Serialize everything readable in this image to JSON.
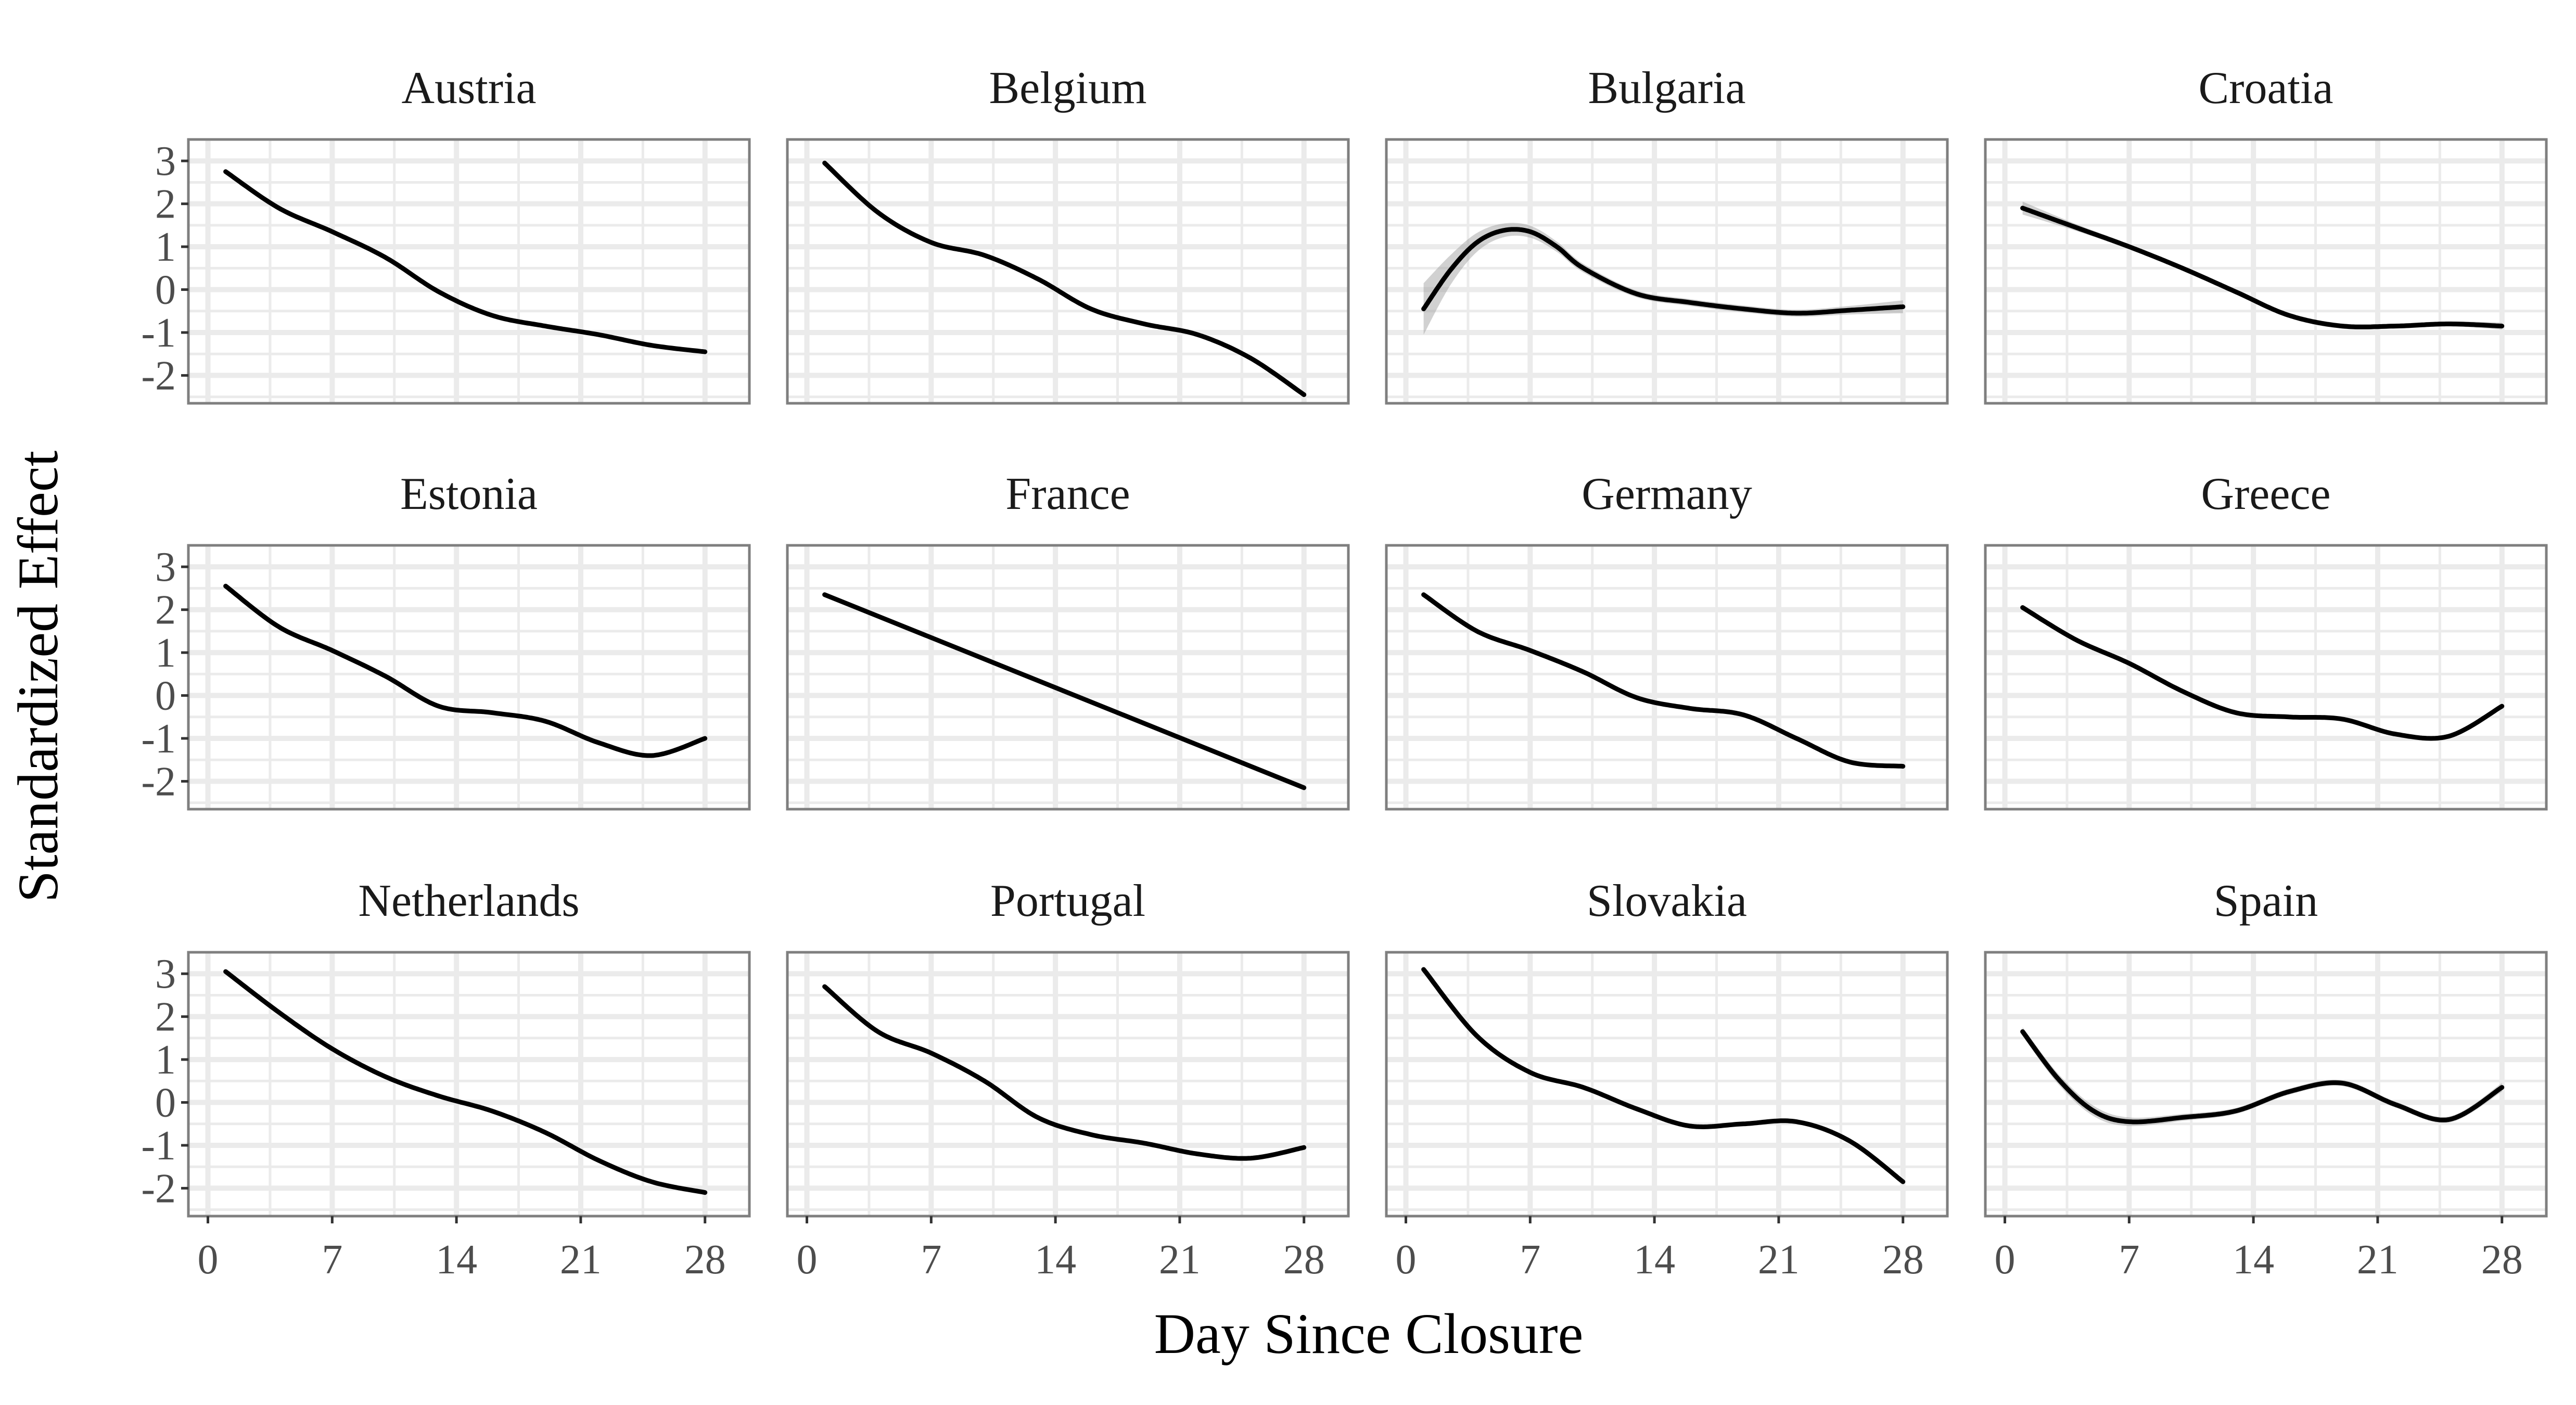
{
  "chart_data": {
    "type": "line",
    "xlabel": "Day Since Closure",
    "ylabel": "Standardized Effect",
    "xlim": [
      -1.1,
      30.5
    ],
    "ylim": [
      -2.65,
      3.5
    ],
    "xticks": [
      0,
      7,
      14,
      21,
      28
    ],
    "xtick_labels": [
      "0",
      "7",
      "14",
      "21",
      "28"
    ],
    "yticks": [
      3,
      2,
      1,
      0,
      -1,
      -2
    ],
    "ytick_labels": [
      "3",
      "2",
      "1",
      "0",
      "-1",
      "-2"
    ],
    "grid": true,
    "layout": {
      "rows": 3,
      "cols": 4
    },
    "panels": [
      {
        "name": "Austria",
        "x": [
          1,
          4,
          7,
          10,
          13,
          16,
          19,
          22,
          25,
          28
        ],
        "y": [
          2.75,
          1.9,
          1.35,
          0.75,
          -0.05,
          -0.6,
          -0.85,
          -1.05,
          -1.3,
          -1.45
        ],
        "band": [
          0.05,
          0.05,
          0.05,
          0.05,
          0.05,
          0.05,
          0.05,
          0.05,
          0.05,
          0.05
        ]
      },
      {
        "name": "Belgium",
        "x": [
          1,
          4,
          7,
          10,
          13,
          16,
          19,
          22,
          25,
          28
        ],
        "y": [
          2.95,
          1.8,
          1.1,
          0.8,
          0.25,
          -0.45,
          -0.8,
          -1.05,
          -1.6,
          -2.45
        ],
        "band": [
          0.05,
          0.05,
          0.05,
          0.05,
          0.05,
          0.05,
          0.05,
          0.05,
          0.05,
          0.05
        ]
      },
      {
        "name": "Bulgaria",
        "x": [
          1,
          2.5,
          4,
          5.5,
          7,
          8.5,
          10,
          13,
          16,
          19,
          22,
          25,
          28
        ],
        "y": [
          -0.45,
          0.45,
          1.1,
          1.38,
          1.35,
          1.0,
          0.5,
          -0.1,
          -0.3,
          -0.45,
          -0.55,
          -0.48,
          -0.4
        ],
        "band": [
          0.6,
          0.35,
          0.22,
          0.16,
          0.14,
          0.12,
          0.1,
          0.08,
          0.08,
          0.08,
          0.08,
          0.1,
          0.15
        ]
      },
      {
        "name": "Croatia",
        "x": [
          1,
          4,
          7,
          10,
          13,
          16,
          19,
          22,
          25,
          28
        ],
        "y": [
          1.9,
          1.45,
          1.0,
          0.5,
          -0.05,
          -0.6,
          -0.85,
          -0.85,
          -0.8,
          -0.85
        ],
        "band": [
          0.15,
          0.08,
          0.06,
          0.06,
          0.06,
          0.06,
          0.06,
          0.06,
          0.06,
          0.08
        ]
      },
      {
        "name": "Estonia",
        "x": [
          1,
          4,
          7,
          10,
          13,
          16,
          19,
          22,
          25,
          28
        ],
        "y": [
          2.55,
          1.6,
          1.05,
          0.45,
          -0.25,
          -0.4,
          -0.6,
          -1.1,
          -1.4,
          -1.0
        ],
        "band": [
          0.05,
          0.05,
          0.05,
          0.05,
          0.05,
          0.05,
          0.05,
          0.05,
          0.05,
          0.05
        ]
      },
      {
        "name": "France",
        "x": [
          1,
          28
        ],
        "y": [
          2.35,
          -2.15
        ],
        "band": [
          0.04,
          0.04
        ]
      },
      {
        "name": "Germany",
        "x": [
          1,
          4,
          7,
          10,
          13,
          16,
          19,
          22,
          25,
          28
        ],
        "y": [
          2.35,
          1.5,
          1.05,
          0.55,
          -0.05,
          -0.3,
          -0.45,
          -1.0,
          -1.55,
          -1.65
        ],
        "band": [
          0.05,
          0.05,
          0.05,
          0.05,
          0.05,
          0.05,
          0.05,
          0.05,
          0.05,
          0.05
        ]
      },
      {
        "name": "Greece",
        "x": [
          1,
          4,
          7,
          10,
          13,
          16,
          19,
          22,
          25,
          28
        ],
        "y": [
          2.05,
          1.3,
          0.75,
          0.1,
          -0.4,
          -0.5,
          -0.55,
          -0.9,
          -0.95,
          -0.25
        ],
        "band": [
          0.05,
          0.05,
          0.05,
          0.05,
          0.05,
          0.05,
          0.05,
          0.05,
          0.05,
          0.05
        ]
      },
      {
        "name": "Netherlands",
        "x": [
          1,
          4,
          7,
          10,
          13,
          16,
          19,
          22,
          25,
          28
        ],
        "y": [
          3.05,
          2.1,
          1.25,
          0.6,
          0.15,
          -0.2,
          -0.7,
          -1.35,
          -1.85,
          -2.1
        ],
        "band": [
          0.05,
          0.05,
          0.05,
          0.05,
          0.05,
          0.05,
          0.05,
          0.05,
          0.05,
          0.05
        ]
      },
      {
        "name": "Portugal",
        "x": [
          1,
          4,
          7,
          10,
          13,
          16,
          19,
          22,
          25,
          28
        ],
        "y": [
          2.7,
          1.65,
          1.15,
          0.5,
          -0.35,
          -0.75,
          -0.95,
          -1.2,
          -1.3,
          -1.05
        ],
        "band": [
          0.05,
          0.05,
          0.05,
          0.05,
          0.05,
          0.05,
          0.05,
          0.05,
          0.05,
          0.05
        ]
      },
      {
        "name": "Slovakia",
        "x": [
          1,
          4,
          7,
          10,
          13,
          16,
          19,
          22,
          25,
          28
        ],
        "y": [
          3.1,
          1.55,
          0.7,
          0.35,
          -0.15,
          -0.55,
          -0.5,
          -0.45,
          -0.9,
          -1.85
        ],
        "band": [
          0.05,
          0.05,
          0.05,
          0.05,
          0.05,
          0.05,
          0.05,
          0.05,
          0.05,
          0.05
        ]
      },
      {
        "name": "Spain",
        "x": [
          1,
          3,
          5,
          7,
          10,
          13,
          16,
          19,
          22,
          25,
          28
        ],
        "y": [
          1.65,
          0.55,
          -0.2,
          -0.45,
          -0.35,
          -0.2,
          0.25,
          0.45,
          -0.05,
          -0.4,
          0.35
        ],
        "band": [
          0.1,
          0.12,
          0.12,
          0.1,
          0.08,
          0.07,
          0.07,
          0.07,
          0.07,
          0.07,
          0.1
        ]
      }
    ]
  }
}
